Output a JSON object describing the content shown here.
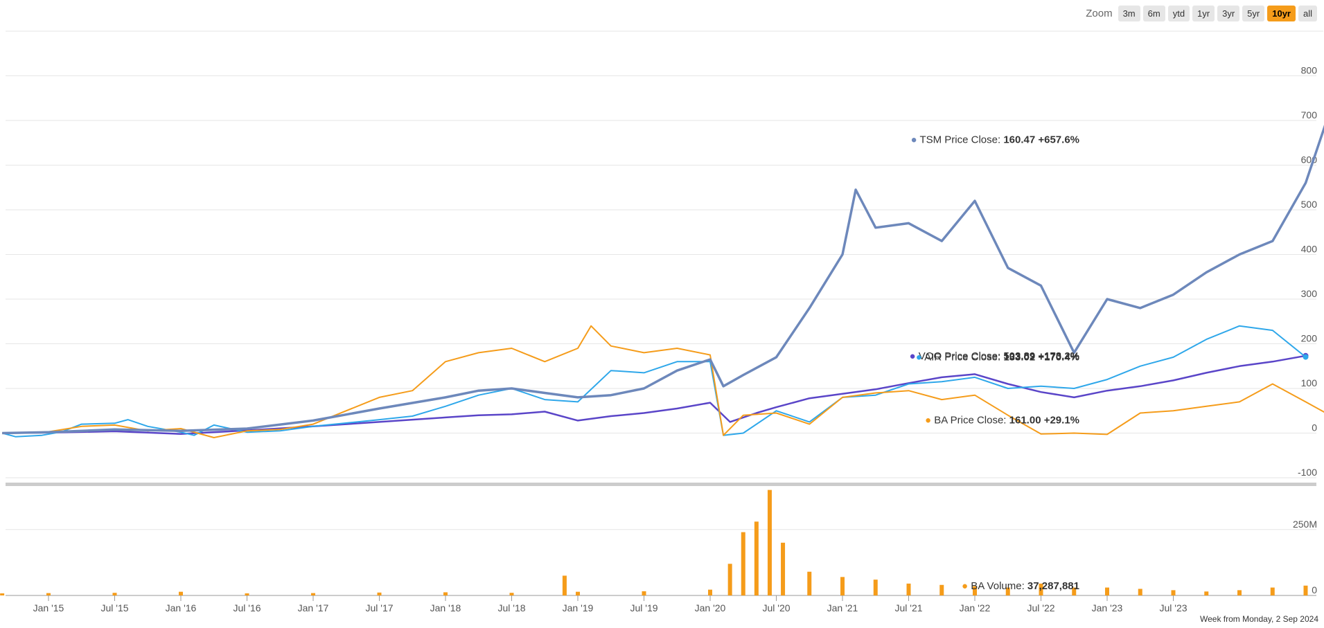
{
  "zoom": {
    "label": "Zoom",
    "buttons": [
      "3m",
      "6m",
      "ytd",
      "1yr",
      "3yr",
      "5yr",
      "10yr",
      "all"
    ],
    "active": "10yr"
  },
  "footnote": "Week from Monday, 2 Sep 2024",
  "chart_data": {
    "type": "line",
    "grid": true,
    "x_ticks": [
      {
        "label": "Jan '15",
        "t": 0.0
      },
      {
        "label": "Jul '15",
        "t": 0.5
      },
      {
        "label": "Jan '16",
        "t": 1.0
      },
      {
        "label": "Jul '16",
        "t": 1.5
      },
      {
        "label": "Jan '17",
        "t": 2.0
      },
      {
        "label": "Jul '17",
        "t": 2.5
      },
      {
        "label": "Jan '18",
        "t": 3.0
      },
      {
        "label": "Jul '18",
        "t": 3.5
      },
      {
        "label": "Jan '19",
        "t": 4.0
      },
      {
        "label": "Jul '19",
        "t": 4.5
      },
      {
        "label": "Jan '20",
        "t": 5.0
      },
      {
        "label": "Jul '20",
        "t": 5.5
      },
      {
        "label": "Jan '21",
        "t": 6.0
      },
      {
        "label": "Jul '21",
        "t": 6.5
      },
      {
        "label": "Jan '22",
        "t": 7.0
      },
      {
        "label": "Jul '22",
        "t": 7.5
      },
      {
        "label": "Jan '23",
        "t": 8.0
      },
      {
        "label": "Jul '23",
        "t": 8.5
      }
    ],
    "price_axis": {
      "ticks": [
        -100,
        0,
        100,
        200,
        300,
        400,
        500,
        600,
        700,
        800
      ],
      "ylim": [
        -100,
        900
      ]
    },
    "volume_axis": {
      "ticks": [
        {
          "value": 0,
          "label": "0"
        },
        {
          "value": 250,
          "label": "250M"
        }
      ],
      "ylim": [
        0,
        420
      ],
      "unit": "M"
    },
    "series": [
      {
        "name": "VOO",
        "kind": "price_change_pct",
        "color": "#5a45c8",
        "width": 2.5,
        "points": [
          [
            -0.35,
            0
          ],
          [
            0,
            1
          ],
          [
            0.5,
            4
          ],
          [
            1.0,
            -2
          ],
          [
            1.5,
            6
          ],
          [
            2.0,
            15
          ],
          [
            2.5,
            25
          ],
          [
            3.0,
            35
          ],
          [
            3.25,
            40
          ],
          [
            3.5,
            42
          ],
          [
            3.75,
            48
          ],
          [
            4.0,
            28
          ],
          [
            4.25,
            38
          ],
          [
            4.5,
            45
          ],
          [
            4.75,
            55
          ],
          [
            5.0,
            68
          ],
          [
            5.15,
            25
          ],
          [
            5.35,
            45
          ],
          [
            5.5,
            58
          ],
          [
            5.75,
            78
          ],
          [
            6.0,
            88
          ],
          [
            6.25,
            98
          ],
          [
            6.5,
            112
          ],
          [
            6.75,
            125
          ],
          [
            7.0,
            132
          ],
          [
            7.25,
            110
          ],
          [
            7.5,
            92
          ],
          [
            7.75,
            80
          ],
          [
            8.0,
            95
          ],
          [
            8.25,
            105
          ],
          [
            8.5,
            118
          ],
          [
            8.75,
            135
          ],
          [
            9.0,
            150
          ],
          [
            9.25,
            160
          ],
          [
            9.5,
            173.2
          ]
        ]
      },
      {
        "name": "AIR",
        "kind": "price_change_pct",
        "color": "#2ea7ea",
        "width": 2,
        "points": [
          [
            -0.35,
            0
          ],
          [
            -0.25,
            -8
          ],
          [
            -0.05,
            -5
          ],
          [
            0.1,
            3
          ],
          [
            0.25,
            20
          ],
          [
            0.5,
            22
          ],
          [
            0.6,
            30
          ],
          [
            0.75,
            15
          ],
          [
            1.0,
            2
          ],
          [
            1.1,
            -5
          ],
          [
            1.25,
            18
          ],
          [
            1.5,
            2
          ],
          [
            1.75,
            5
          ],
          [
            2.0,
            15
          ],
          [
            2.5,
            30
          ],
          [
            2.75,
            38
          ],
          [
            3.0,
            60
          ],
          [
            3.25,
            85
          ],
          [
            3.5,
            100
          ],
          [
            3.75,
            75
          ],
          [
            4.0,
            70
          ],
          [
            4.25,
            140
          ],
          [
            4.5,
            135
          ],
          [
            4.75,
            160
          ],
          [
            5.0,
            160
          ],
          [
            5.1,
            -5
          ],
          [
            5.25,
            0
          ],
          [
            5.5,
            50
          ],
          [
            5.75,
            25
          ],
          [
            6.0,
            80
          ],
          [
            6.25,
            85
          ],
          [
            6.5,
            110
          ],
          [
            6.75,
            115
          ],
          [
            7.0,
            125
          ],
          [
            7.25,
            100
          ],
          [
            7.5,
            105
          ],
          [
            7.75,
            100
          ],
          [
            8.0,
            120
          ],
          [
            8.25,
            150
          ],
          [
            8.5,
            170
          ],
          [
            8.75,
            210
          ],
          [
            9.0,
            240
          ],
          [
            9.25,
            230
          ],
          [
            9.5,
            170.4
          ]
        ]
      },
      {
        "name": "BA",
        "kind": "price_change_pct",
        "color": "#f59c1a",
        "width": 2,
        "points": [
          [
            -0.35,
            0
          ],
          [
            0,
            3
          ],
          [
            0.25,
            15
          ],
          [
            0.5,
            18
          ],
          [
            0.75,
            5
          ],
          [
            1.0,
            10
          ],
          [
            1.25,
            -10
          ],
          [
            1.5,
            5
          ],
          [
            1.75,
            8
          ],
          [
            2.0,
            20
          ],
          [
            2.5,
            80
          ],
          [
            2.75,
            95
          ],
          [
            3.0,
            160
          ],
          [
            3.25,
            180
          ],
          [
            3.5,
            190
          ],
          [
            3.75,
            160
          ],
          [
            4.0,
            190
          ],
          [
            4.1,
            240
          ],
          [
            4.25,
            195
          ],
          [
            4.5,
            180
          ],
          [
            4.75,
            190
          ],
          [
            5.0,
            175
          ],
          [
            5.1,
            -5
          ],
          [
            5.25,
            40
          ],
          [
            5.5,
            45
          ],
          [
            5.75,
            20
          ],
          [
            6.0,
            80
          ],
          [
            6.25,
            90
          ],
          [
            6.5,
            95
          ],
          [
            6.75,
            75
          ],
          [
            7.0,
            85
          ],
          [
            7.25,
            40
          ],
          [
            7.5,
            -2
          ],
          [
            7.75,
            0
          ],
          [
            8.0,
            -3
          ],
          [
            8.25,
            45
          ],
          [
            8.5,
            50
          ],
          [
            8.75,
            60
          ],
          [
            9.0,
            70
          ],
          [
            9.25,
            110
          ],
          [
            9.5,
            70
          ],
          [
            9.75,
            29.1
          ]
        ]
      },
      {
        "name": "TSM",
        "kind": "price_change_pct",
        "color": "#6d88bb",
        "width": 3.5,
        "points": [
          [
            -0.35,
            0
          ],
          [
            0,
            2
          ],
          [
            0.5,
            8
          ],
          [
            1.0,
            5
          ],
          [
            1.5,
            10
          ],
          [
            2.0,
            28
          ],
          [
            2.5,
            55
          ],
          [
            3.0,
            80
          ],
          [
            3.25,
            95
          ],
          [
            3.5,
            100
          ],
          [
            3.75,
            90
          ],
          [
            4.0,
            80
          ],
          [
            4.25,
            85
          ],
          [
            4.5,
            100
          ],
          [
            4.75,
            140
          ],
          [
            5.0,
            165
          ],
          [
            5.1,
            105
          ],
          [
            5.25,
            130
          ],
          [
            5.5,
            170
          ],
          [
            5.75,
            280
          ],
          [
            6.0,
            400
          ],
          [
            6.1,
            545
          ],
          [
            6.25,
            460
          ],
          [
            6.5,
            470
          ],
          [
            6.75,
            430
          ],
          [
            7.0,
            520
          ],
          [
            7.25,
            370
          ],
          [
            7.5,
            330
          ],
          [
            7.75,
            180
          ],
          [
            8.0,
            300
          ],
          [
            8.25,
            280
          ],
          [
            8.5,
            310
          ],
          [
            8.75,
            360
          ],
          [
            9.0,
            400
          ],
          [
            9.25,
            430
          ],
          [
            9.5,
            560
          ],
          [
            9.75,
            780
          ],
          [
            10.0,
            657.6
          ]
        ]
      },
      {
        "name": "BA Volume",
        "kind": "volume_bars",
        "color": "#f59c1a",
        "bars": [
          [
            -0.35,
            8
          ],
          [
            0.0,
            9
          ],
          [
            0.5,
            10
          ],
          [
            1.0,
            14
          ],
          [
            1.5,
            8
          ],
          [
            2.0,
            9
          ],
          [
            2.5,
            11
          ],
          [
            3.0,
            12
          ],
          [
            3.5,
            10
          ],
          [
            3.9,
            75
          ],
          [
            4.0,
            14
          ],
          [
            4.5,
            16
          ],
          [
            5.0,
            22
          ],
          [
            5.15,
            120
          ],
          [
            5.25,
            240
          ],
          [
            5.35,
            280
          ],
          [
            5.45,
            400
          ],
          [
            5.55,
            200
          ],
          [
            5.75,
            90
          ],
          [
            6.0,
            70
          ],
          [
            6.25,
            60
          ],
          [
            6.5,
            45
          ],
          [
            6.75,
            40
          ],
          [
            7.0,
            35
          ],
          [
            7.25,
            30
          ],
          [
            7.5,
            45
          ],
          [
            7.75,
            30
          ],
          [
            8.0,
            30
          ],
          [
            8.25,
            25
          ],
          [
            8.5,
            20
          ],
          [
            8.75,
            15
          ],
          [
            9.0,
            20
          ],
          [
            9.25,
            30
          ],
          [
            9.5,
            37.3
          ]
        ]
      }
    ],
    "tooltips": [
      {
        "series": "TSM",
        "label": "TSM Price Close:",
        "value": "160.47 +657.6%"
      },
      {
        "series": "VOO",
        "label": "VOO Price Close:",
        "value": "503.89 +173.2%"
      },
      {
        "series": "AIR",
        "label": "AIR Price Close:",
        "value": "133.02 +170.4%"
      },
      {
        "series": "BA",
        "label": "BA Price Close:",
        "value": "161.00 +29.1%"
      },
      {
        "series": "BA Volume",
        "label": "BA Volume:",
        "value": "37,287,881"
      }
    ]
  }
}
